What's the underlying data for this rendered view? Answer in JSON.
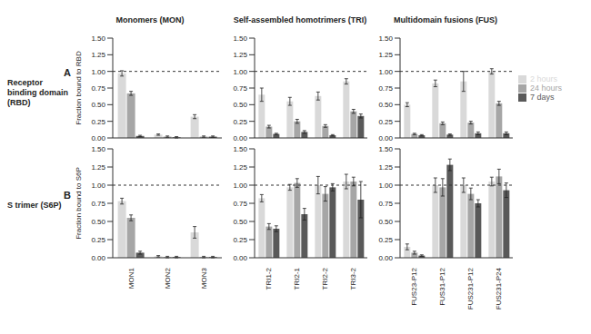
{
  "chart_data": [
    {
      "type": "bar",
      "title": "Monomers (MON)",
      "annotations": [
        "A",
        "Receptor binding domain (RBD)"
      ],
      "ylabel": "Fraction bound to RBD",
      "categories": [
        "MON1",
        "MON2",
        "MON3"
      ],
      "series": [
        {
          "name": "2 hours",
          "color": "#d9d9d9",
          "values": [
            0.97,
            0.05,
            0.32
          ],
          "errors": [
            0.04,
            0.01,
            0.03
          ]
        },
        {
          "name": "24 hours",
          "color": "#a6a6a6",
          "values": [
            0.67,
            0.02,
            0.02
          ],
          "errors": [
            0.03,
            0.01,
            0.01
          ]
        },
        {
          "name": "7 days",
          "color": "#595959",
          "values": [
            0.03,
            0.01,
            0.02
          ],
          "errors": [
            0.01,
            0.01,
            0.01
          ]
        }
      ],
      "ylim": [
        0,
        1.5
      ],
      "yticks": [
        {
          "value": 0,
          "label": "0.00"
        },
        {
          "value": 0.25,
          "label": "0.25"
        },
        {
          "value": 0.5,
          "label": "0.50"
        },
        {
          "value": 0.75,
          "label": "0.75"
        },
        {
          "value": 1,
          "label": "1.00"
        },
        {
          "value": 1.25,
          "label": "1.25"
        },
        {
          "value": 1.5,
          "label": "1.50"
        }
      ],
      "hline": 1,
      "tick_labels": "y"
    },
    {
      "type": "bar",
      "title": "Self-assembled homotrimers (TRI)",
      "categories": [
        "TRI1-2",
        "TRI2-1",
        "TRI2-2",
        "TRI3-2"
      ],
      "series": [
        {
          "name": "2 hours",
          "color": "#d9d9d9",
          "values": [
            0.65,
            0.55,
            0.63,
            0.85
          ],
          "errors": [
            0.1,
            0.06,
            0.06,
            0.04
          ]
        },
        {
          "name": "24 hours",
          "color": "#a6a6a6",
          "values": [
            0.17,
            0.25,
            0.18,
            0.4
          ],
          "errors": [
            0.02,
            0.03,
            0.02,
            0.03
          ]
        },
        {
          "name": "7 days",
          "color": "#595959",
          "values": [
            0.06,
            0.09,
            0.04,
            0.33
          ],
          "errors": [
            0.01,
            0.02,
            0.01,
            0.03
          ]
        }
      ],
      "ylim": [
        0,
        1.5
      ],
      "yticks": [
        {
          "value": 0,
          "label": "0.00"
        },
        {
          "value": 0.25,
          "label": "0.25"
        },
        {
          "value": 0.5,
          "label": "0.50"
        },
        {
          "value": 0.75,
          "label": "0.75"
        },
        {
          "value": 1,
          "label": "1.00"
        },
        {
          "value": 1.25,
          "label": "1.25"
        },
        {
          "value": 1.5,
          "label": "1.50"
        }
      ],
      "hline": 1,
      "tick_labels": "y"
    },
    {
      "type": "bar",
      "title": "Multidomain fusions (FUS)",
      "legend": "right",
      "categories": [
        "FUS23-P12",
        "FUS31-P12",
        "FUS231-P12",
        "FUS231-P24"
      ],
      "series": [
        {
          "name": "2 hours",
          "color": "#d9d9d9",
          "values": [
            0.5,
            0.82,
            0.85,
            1.0
          ],
          "errors": [
            0.03,
            0.05,
            0.15,
            0.04
          ]
        },
        {
          "name": "24 hours",
          "color": "#a6a6a6",
          "values": [
            0.06,
            0.22,
            0.23,
            0.52
          ],
          "errors": [
            0.01,
            0.02,
            0.02,
            0.03
          ]
        },
        {
          "name": "7 days",
          "color": "#595959",
          "values": [
            0.04,
            0.05,
            0.07,
            0.07
          ],
          "errors": [
            0.01,
            0.01,
            0.02,
            0.02
          ]
        }
      ],
      "ylim": [
        0,
        1.5
      ],
      "yticks": [
        {
          "value": 0,
          "label": "0.00"
        },
        {
          "value": 0.25,
          "label": "0.25"
        },
        {
          "value": 0.5,
          "label": "0.50"
        },
        {
          "value": 0.75,
          "label": "0.75"
        },
        {
          "value": 1,
          "label": "1.00"
        },
        {
          "value": 1.25,
          "label": "1.25"
        },
        {
          "value": 1.5,
          "label": "1.50"
        }
      ],
      "hline": 1,
      "tick_labels": "y"
    },
    {
      "type": "bar",
      "annotations": [
        "B",
        "S trimer (S6P)"
      ],
      "ylabel": "Fraction bound to S6P",
      "categories": [
        "MON1",
        "MON2",
        "MON3"
      ],
      "series": [
        {
          "name": "2 hours",
          "color": "#d9d9d9",
          "values": [
            0.78,
            0.02,
            0.35
          ],
          "errors": [
            0.04,
            0.01,
            0.08
          ]
        },
        {
          "name": "24 hours",
          "color": "#a6a6a6",
          "values": [
            0.55,
            0.01,
            0.01
          ],
          "errors": [
            0.04,
            0.01,
            0.01
          ]
        },
        {
          "name": "7 days",
          "color": "#595959",
          "values": [
            0.07,
            0.01,
            0.01
          ],
          "errors": [
            0.02,
            0.01,
            0.01
          ]
        }
      ],
      "ylim": [
        0,
        1.5
      ],
      "yticks": [
        {
          "value": 0,
          "label": "0.00"
        },
        {
          "value": 0.25,
          "label": "0.25"
        },
        {
          "value": 0.5,
          "label": "0.50"
        },
        {
          "value": 0.75,
          "label": "0.75"
        },
        {
          "value": 1,
          "label": "1.00"
        },
        {
          "value": 1.25,
          "label": "1.25"
        },
        {
          "value": 1.5,
          "label": "1.50"
        }
      ],
      "hline": 1
    },
    {
      "type": "bar",
      "categories": [
        "TRI1-2",
        "TRI2-1",
        "TRI2-2",
        "TRI3-2"
      ],
      "series": [
        {
          "name": "2 hours",
          "color": "#d9d9d9",
          "values": [
            0.82,
            0.97,
            1.0,
            1.05
          ],
          "errors": [
            0.05,
            0.04,
            0.12,
            0.1
          ]
        },
        {
          "name": "24 hours",
          "color": "#a6a6a6",
          "values": [
            0.43,
            1.03,
            0.88,
            1.05
          ],
          "errors": [
            0.04,
            0.06,
            0.1,
            0.06
          ]
        },
        {
          "name": "7 days",
          "color": "#595959",
          "values": [
            0.4,
            0.6,
            0.97,
            0.8
          ],
          "errors": [
            0.04,
            0.08,
            0.05,
            0.25
          ]
        }
      ],
      "ylim": [
        0,
        1.5
      ],
      "yticks": [
        {
          "value": 0,
          "label": "0.00"
        },
        {
          "value": 0.25,
          "label": "0.25"
        },
        {
          "value": 0.5,
          "label": "0.50"
        },
        {
          "value": 0.75,
          "label": "0.75"
        },
        {
          "value": 1,
          "label": "1.00"
        },
        {
          "value": 1.25,
          "label": "1.25"
        },
        {
          "value": 1.5,
          "label": "1.50"
        }
      ],
      "hline": 1
    },
    {
      "type": "bar",
      "categories": [
        "FUS23-P12",
        "FUS31-P12",
        "FUS231-P12",
        "FUS231-P24"
      ],
      "series": [
        {
          "name": "2 hours",
          "color": "#d9d9d9",
          "values": [
            0.15,
            1.0,
            1.0,
            1.05
          ],
          "errors": [
            0.04,
            0.1,
            0.1,
            0.06
          ]
        },
        {
          "name": "24 hours",
          "color": "#a6a6a6",
          "values": [
            0.07,
            0.97,
            0.88,
            1.12
          ],
          "errors": [
            0.02,
            0.12,
            0.08,
            0.1
          ]
        },
        {
          "name": "7 days",
          "color": "#595959",
          "values": [
            0.03,
            1.28,
            0.75,
            0.93
          ],
          "errors": [
            0.01,
            0.08,
            0.05,
            0.1
          ]
        }
      ],
      "ylim": [
        0,
        1.5
      ],
      "yticks": [
        {
          "value": 0,
          "label": "0.00"
        },
        {
          "value": 0.25,
          "label": "0.25"
        },
        {
          "value": 0.5,
          "label": "0.50"
        },
        {
          "value": 0.75,
          "label": "0.75"
        },
        {
          "value": 1,
          "label": "1.00"
        },
        {
          "value": 1.25,
          "label": "1.25"
        },
        {
          "value": 1.5,
          "label": "1.50"
        }
      ],
      "hline": 1
    }
  ]
}
